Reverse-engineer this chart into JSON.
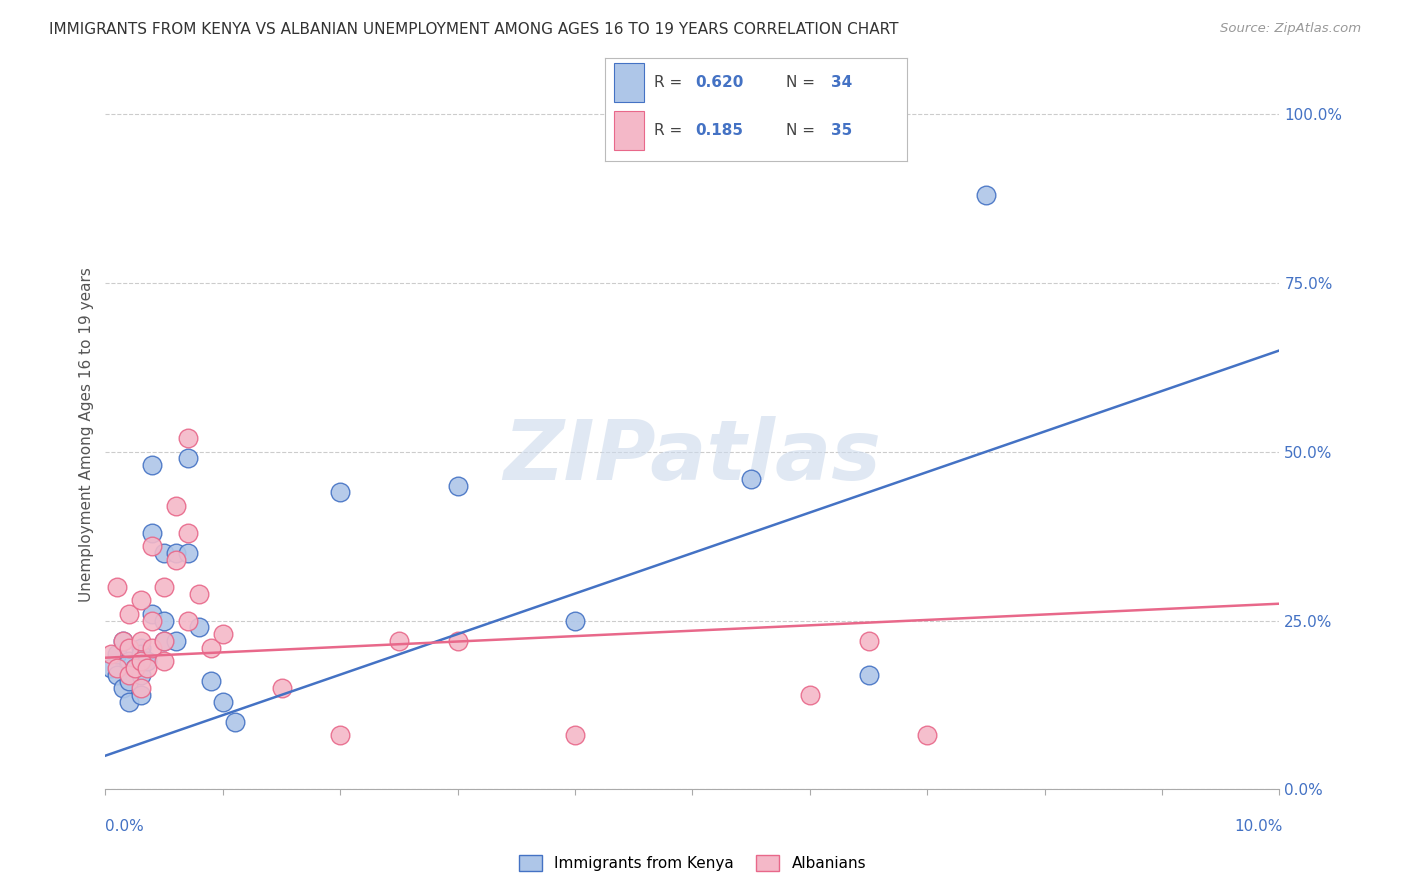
{
  "title": "IMMIGRANTS FROM KENYA VS ALBANIAN UNEMPLOYMENT AMONG AGES 16 TO 19 YEARS CORRELATION CHART",
  "source": "Source: ZipAtlas.com",
  "ylabel": "Unemployment Among Ages 16 to 19 years",
  "right_yticks": [
    0.0,
    0.25,
    0.5,
    0.75,
    1.0
  ],
  "right_ytick_labels": [
    "0.0%",
    "25.0%",
    "50.0%",
    "75.0%",
    "100.0%"
  ],
  "xlim": [
    0.0,
    0.1
  ],
  "ylim": [
    0.0,
    1.05
  ],
  "watermark": "ZIPatlas",
  "blue_scatter_x": [
    0.0005,
    0.001,
    0.001,
    0.0015,
    0.0015,
    0.002,
    0.002,
    0.002,
    0.0025,
    0.003,
    0.003,
    0.003,
    0.003,
    0.0035,
    0.004,
    0.004,
    0.004,
    0.005,
    0.005,
    0.005,
    0.006,
    0.006,
    0.007,
    0.007,
    0.008,
    0.009,
    0.01,
    0.011,
    0.02,
    0.03,
    0.04,
    0.055,
    0.065,
    0.075
  ],
  "blue_scatter_y": [
    0.18,
    0.2,
    0.17,
    0.22,
    0.15,
    0.19,
    0.16,
    0.13,
    0.18,
    0.21,
    0.17,
    0.2,
    0.14,
    0.19,
    0.48,
    0.38,
    0.26,
    0.35,
    0.25,
    0.22,
    0.35,
    0.22,
    0.49,
    0.35,
    0.24,
    0.16,
    0.13,
    0.1,
    0.44,
    0.45,
    0.25,
    0.46,
    0.17,
    0.88
  ],
  "pink_scatter_x": [
    0.0005,
    0.001,
    0.001,
    0.0015,
    0.002,
    0.002,
    0.002,
    0.0025,
    0.003,
    0.003,
    0.003,
    0.003,
    0.0035,
    0.004,
    0.004,
    0.004,
    0.005,
    0.005,
    0.005,
    0.006,
    0.006,
    0.007,
    0.007,
    0.007,
    0.008,
    0.009,
    0.01,
    0.015,
    0.02,
    0.025,
    0.03,
    0.04,
    0.06,
    0.065,
    0.07
  ],
  "pink_scatter_y": [
    0.2,
    0.3,
    0.18,
    0.22,
    0.26,
    0.21,
    0.17,
    0.18,
    0.28,
    0.22,
    0.19,
    0.15,
    0.18,
    0.36,
    0.25,
    0.21,
    0.3,
    0.22,
    0.19,
    0.42,
    0.34,
    0.52,
    0.38,
    0.25,
    0.29,
    0.21,
    0.23,
    0.15,
    0.08,
    0.22,
    0.22,
    0.08,
    0.14,
    0.22,
    0.08
  ],
  "blue_line_x": [
    0.0,
    0.1
  ],
  "blue_line_y": [
    0.05,
    0.65
  ],
  "pink_line_x": [
    0.0,
    0.1
  ],
  "pink_line_y": [
    0.195,
    0.275
  ],
  "blue_color": "#4472C4",
  "blue_fill": "#AEC6E8",
  "pink_color": "#E8688A",
  "pink_fill": "#F4B8C8",
  "background_color": "#ffffff",
  "grid_color": "#cccccc",
  "title_color": "#333333",
  "right_axis_color": "#4472C4",
  "scatter_size": 180,
  "scatter_linewidth": 1.0
}
